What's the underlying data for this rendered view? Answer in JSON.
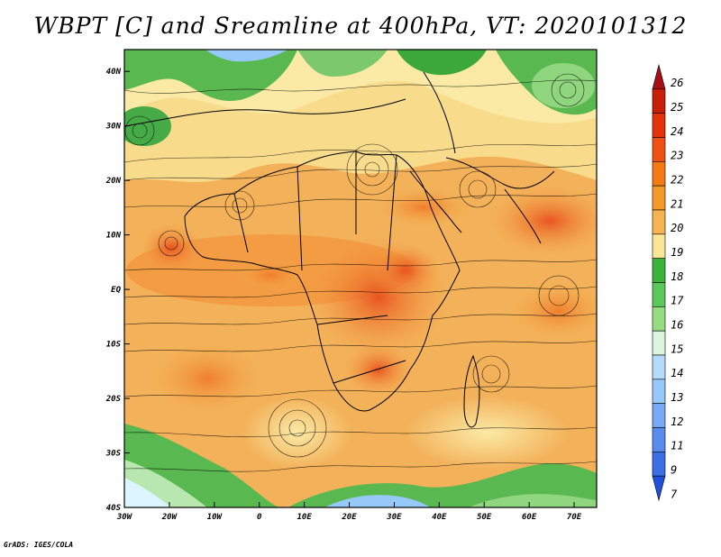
{
  "title": "WBPT [C] and Sreamline at 400hPa, VT: 2020101312",
  "credit": "GrADS: IGES/COLA",
  "map": {
    "lon_labels": [
      "30W",
      "20W",
      "10W",
      "0",
      "10E",
      "20E",
      "30E",
      "40E",
      "50E",
      "60E",
      "70E"
    ],
    "lat_labels": [
      "40N",
      "30N",
      "20N",
      "10N",
      "EQ",
      "10S",
      "20S",
      "30S",
      "40S"
    ],
    "lon_range": [
      -30,
      75
    ],
    "lat_range": [
      -40,
      44
    ]
  },
  "colorbar": {
    "labels": [
      "26",
      "25",
      "24",
      "23",
      "22",
      "21",
      "20",
      "19",
      "18",
      "17",
      "16",
      "15",
      "14",
      "13",
      "12",
      "11",
      "9",
      "7"
    ],
    "colors": [
      "#a50f15",
      "#c81e0a",
      "#e6320a",
      "#f05014",
      "#f57a14",
      "#f59a28",
      "#f5b450",
      "#fae696",
      "#3cb43c",
      "#5ac85a",
      "#96dc82",
      "#dcf5dc",
      "#b4dcfa",
      "#96c8fa",
      "#78aaf5",
      "#5a8cf0",
      "#3c6ee6",
      "#1e50dc"
    ]
  }
}
